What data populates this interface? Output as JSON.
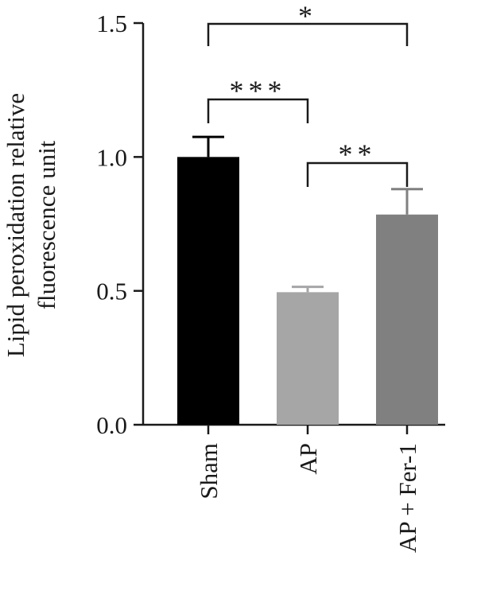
{
  "chart_data": {
    "type": "bar",
    "title": "",
    "xlabel": "",
    "ylabel_lines": [
      "Lipid peroxidation relative",
      "fluorescence unit"
    ],
    "categories": [
      "Sham",
      "AP",
      "AP + Fer-1"
    ],
    "values": [
      1.0,
      0.495,
      0.785
    ],
    "errors": [
      0.075,
      0.02,
      0.095
    ],
    "colors": [
      "#000000",
      "#a6a6a7",
      "#808080"
    ],
    "ylim": [
      0,
      1.5
    ],
    "yticks": [
      0.0,
      0.5,
      1.0,
      1.5
    ],
    "ytick_labels": [
      "0.0",
      "0.5",
      "1.0",
      "1.5"
    ],
    "grid": false,
    "significance": [
      {
        "from": 0,
        "to": 1,
        "label": "***"
      },
      {
        "from": 1,
        "to": 2,
        "label": "**"
      },
      {
        "from": 0,
        "to": 2,
        "label": "*"
      }
    ]
  }
}
